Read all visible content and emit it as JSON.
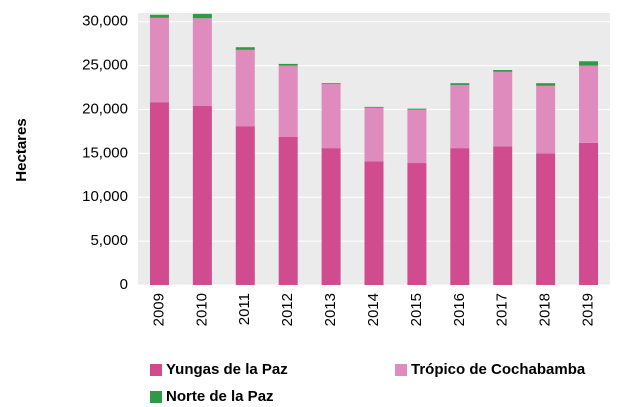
{
  "chart_data": {
    "type": "bar",
    "stacked": true,
    "y_label": "Hectares",
    "categories": [
      "2009",
      "2010",
      "2011",
      "2012",
      "2013",
      "2014",
      "2015",
      "2016",
      "2017",
      "2018",
      "2019"
    ],
    "series": [
      {
        "name": "Yungas de la Paz",
        "color": "#d14b8f",
        "values": [
          20800,
          20400,
          18100,
          16900,
          15600,
          14100,
          13900,
          15600,
          15800,
          15000,
          16200
        ]
      },
      {
        "name": "Trópico de Cochabamba",
        "color": "#e08bbd",
        "values": [
          9650,
          10000,
          8700,
          8100,
          7300,
          6100,
          6100,
          7200,
          8500,
          7700,
          8800
        ]
      },
      {
        "name": "Norte de la Paz",
        "color": "#2e9a48",
        "values": [
          350,
          500,
          300,
          200,
          100,
          100,
          100,
          200,
          200,
          300,
          500
        ]
      }
    ],
    "ylim": [
      0,
      31000
    ],
    "yticks": [
      0,
      {
        "value": 5000,
        "label": "5,000"
      },
      {
        "value": 10000,
        "label": "10,000"
      },
      {
        "value": 15000,
        "label": "15,000"
      },
      {
        "value": 20000,
        "label": "20,000"
      },
      {
        "value": 25000,
        "label": "25,000"
      },
      {
        "value": 30000,
        "label": "30,000"
      }
    ],
    "grid": true
  }
}
